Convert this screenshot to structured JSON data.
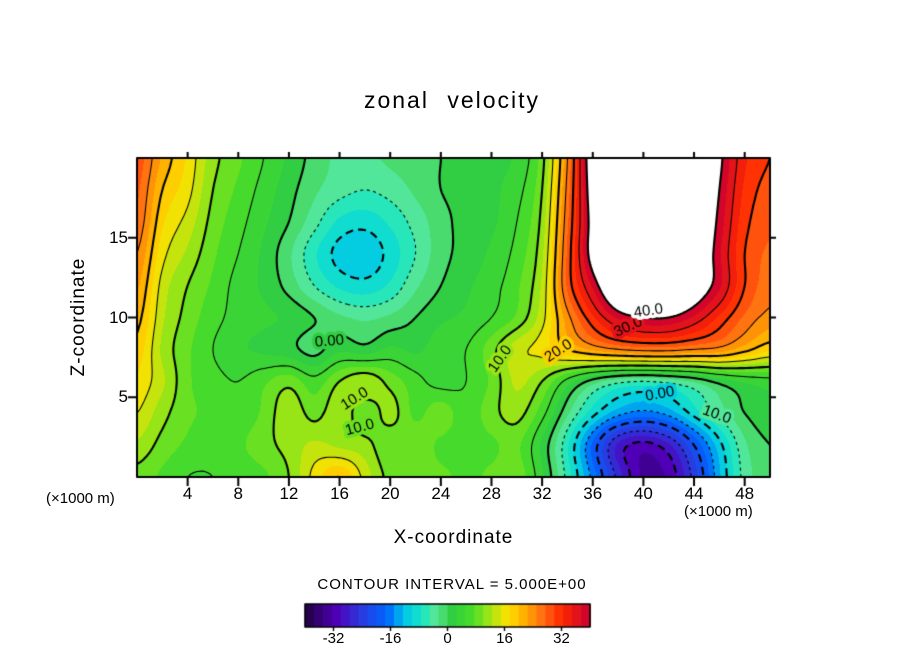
{
  "title": "zonal velocity",
  "axes": {
    "x_label": "X-coordinate",
    "y_label": "Z-coordinate",
    "x_units": "(×1000 m)",
    "y_units": "(×1000 m)",
    "x_ticks": [
      4,
      8,
      12,
      16,
      20,
      24,
      28,
      32,
      36,
      40,
      44,
      48
    ],
    "z_ticks": [
      5,
      10,
      15
    ],
    "x_range": [
      0,
      50
    ],
    "z_range": [
      0,
      20
    ]
  },
  "contour_interval_text": "CONTOUR INTERVAL = 5.000E+00",
  "colorbar": {
    "min": -40,
    "max": 40,
    "band": 2.5,
    "tick_values": [
      -32,
      -16,
      0,
      16,
      32
    ],
    "tick_labels": [
      "-32",
      "-16",
      "0",
      "16",
      "32"
    ],
    "over_max_color": "#ffffff",
    "colormap_anchors": [
      [
        -40,
        "#200040"
      ],
      [
        -31,
        "#5000b9"
      ],
      [
        -24,
        "#283ce1"
      ],
      [
        -17,
        "#0064ff"
      ],
      [
        -12,
        "#00c8e8"
      ],
      [
        -7,
        "#19e6c3"
      ],
      [
        -3,
        "#5fe691"
      ],
      [
        1,
        "#30cd44"
      ],
      [
        7,
        "#49dc28"
      ],
      [
        12,
        "#a5e614"
      ],
      [
        17,
        "#ffe100"
      ],
      [
        22,
        "#ffaa00"
      ],
      [
        27,
        "#ff6914"
      ],
      [
        32,
        "#ff2800"
      ],
      [
        40,
        "#c80032"
      ]
    ]
  },
  "chart_data": {
    "type": "heatmap",
    "title": "zonal velocity",
    "xlabel": "X-coordinate (×1000 m)",
    "ylabel": "Z-coordinate (×1000 m)",
    "contour_interval": 5.0,
    "contour_levels": [
      -35,
      -30,
      -25,
      -20,
      -15,
      -10,
      -5,
      0,
      5,
      10,
      15,
      20,
      25,
      30,
      35,
      40
    ],
    "labeled_levels": [
      0,
      10,
      20,
      30,
      40
    ],
    "x": [
      0,
      2,
      4,
      6,
      8,
      10,
      12,
      14,
      16,
      18,
      20,
      22,
      24,
      26,
      28,
      30,
      32,
      34,
      36,
      38,
      40,
      42,
      44,
      46,
      48,
      50
    ],
    "z": [
      0,
      2,
      4,
      6,
      8,
      10,
      12,
      14,
      16,
      18,
      20
    ],
    "values_by_row_z_ascending": [
      [
        9,
        7,
        5,
        5,
        6,
        7,
        10,
        16,
        20,
        14,
        9,
        8,
        8,
        7,
        8,
        9,
        3,
        -6,
        -16,
        -26,
        -33,
        -32,
        -24,
        -13,
        -4,
        -1
      ],
      [
        12,
        9,
        7,
        6,
        7,
        9,
        11,
        13,
        12,
        11,
        8,
        9,
        7,
        6,
        7,
        8,
        2,
        -7,
        -18,
        -28,
        -31,
        -28,
        -20,
        -11,
        -3,
        0
      ],
      [
        15,
        11,
        8,
        7,
        6,
        8,
        12,
        9,
        12,
        8,
        11,
        7,
        9,
        6,
        9,
        11,
        6,
        -2,
        -9,
        -14,
        -16,
        -14,
        -9,
        -4,
        0,
        2
      ],
      [
        17,
        13,
        8,
        6,
        5,
        7,
        9,
        6,
        10,
        12,
        9,
        6,
        4,
        5,
        8,
        13,
        10,
        4,
        -1,
        -4,
        -5,
        -4,
        -2,
        1,
        3,
        4
      ],
      [
        19,
        12,
        8,
        5,
        3,
        2,
        1,
        -1,
        2,
        1,
        3,
        2,
        4,
        5,
        9,
        14,
        16,
        20,
        23,
        25,
        26,
        26,
        25,
        24,
        21,
        18
      ],
      [
        21,
        13,
        9,
        6,
        4,
        3,
        2,
        0,
        -2,
        -3,
        -2,
        0,
        2,
        3,
        5,
        8,
        14,
        24,
        32,
        38,
        40,
        40,
        37,
        32,
        27,
        24
      ],
      [
        23,
        14,
        10,
        7,
        4,
        2,
        -1,
        -5,
        -8,
        -9,
        -7,
        -3,
        0,
        2,
        4,
        7,
        13,
        28,
        38,
        46,
        48,
        48,
        44,
        38,
        30,
        26
      ],
      [
        25,
        16,
        12,
        8,
        5,
        2,
        -2,
        -7,
        -11,
        -12,
        -9,
        -5,
        -1,
        1,
        3,
        6,
        12,
        28,
        42,
        48,
        50,
        50,
        46,
        38,
        30,
        27
      ],
      [
        27,
        18,
        14,
        9,
        6,
        3,
        0,
        -4,
        -8,
        -9,
        -7,
        -4,
        -1,
        1,
        2,
        5,
        11,
        27,
        42,
        49,
        52,
        52,
        47,
        39,
        31,
        28
      ],
      [
        28,
        20,
        16,
        10,
        7,
        4,
        1,
        -2,
        -4,
        -5,
        -4,
        -2,
        0,
        1,
        2,
        4,
        10,
        26,
        43,
        50,
        53,
        53,
        48,
        40,
        32,
        29
      ],
      [
        29,
        22,
        17,
        11,
        8,
        5,
        2,
        -1,
        -3,
        -3,
        -2,
        -1,
        0,
        1,
        2,
        3,
        9,
        25,
        44,
        51,
        54,
        54,
        49,
        41,
        33,
        30
      ]
    ],
    "annotations": [
      {
        "text": "0.00",
        "x": 15.2,
        "z": 8.5,
        "angle_deg": -5
      },
      {
        "text": "10.0",
        "x": 17.2,
        "z": 4.9,
        "angle_deg": -33
      },
      {
        "text": "10.0",
        "x": 17.6,
        "z": 3.1,
        "angle_deg": -15
      },
      {
        "text": "10.0",
        "x": 28.7,
        "z": 7.4,
        "angle_deg": -55
      },
      {
        "text": "20.0",
        "x": 33.3,
        "z": 7.9,
        "angle_deg": -33
      },
      {
        "text": "30.0",
        "x": 38.8,
        "z": 9.4,
        "angle_deg": -25
      },
      {
        "text": "40.0",
        "x": 40.4,
        "z": 10.4,
        "angle_deg": -8
      },
      {
        "text": "0.00",
        "x": 41.3,
        "z": 5.2,
        "angle_deg": -10
      },
      {
        "text": "10.0",
        "x": 45.8,
        "z": 3.9,
        "angle_deg": 20
      }
    ]
  }
}
